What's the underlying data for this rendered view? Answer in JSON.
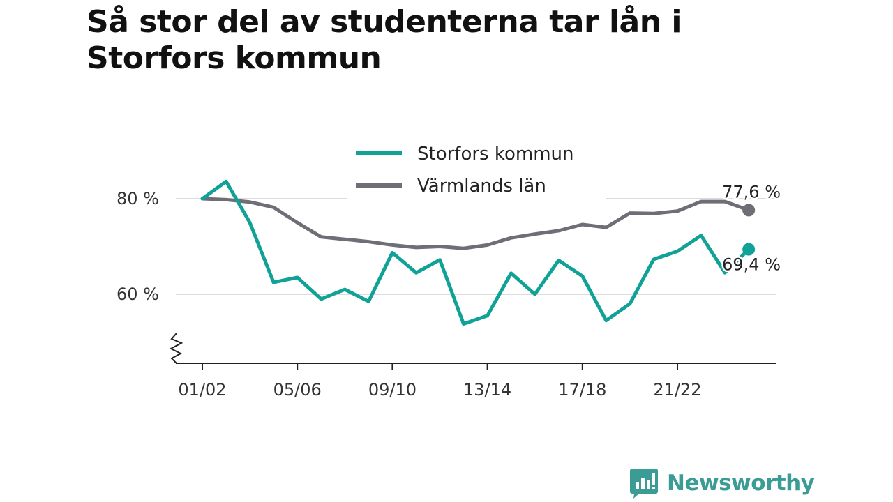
{
  "title": "Så stor del av studenterna tar lån i Storfors kommun",
  "brand": {
    "name": "Newsworthy",
    "icon": "newsworthy-logo-icon",
    "color": "#3a9c95"
  },
  "chart_data": {
    "type": "line",
    "title": "Så stor del av studenterna tar lån i Storfors kommun",
    "x": [
      "01/02",
      "02/03",
      "03/04",
      "04/05",
      "05/06",
      "06/07",
      "07/08",
      "08/09",
      "09/10",
      "10/11",
      "11/12",
      "12/13",
      "13/14",
      "14/15",
      "15/16",
      "16/17",
      "17/18",
      "18/19",
      "19/20",
      "20/21",
      "21/22",
      "22/23",
      "23/24",
      "24/25"
    ],
    "x_tick_labels": [
      "01/02",
      "05/06",
      "09/10",
      "13/14",
      "17/18",
      "21/22"
    ],
    "y_tick_labels": [
      "60 %",
      "80 %"
    ],
    "y_ticks": [
      60,
      80
    ],
    "ylim": [
      46,
      90
    ],
    "y_axis_break": true,
    "grid": true,
    "legend_position": "top-center",
    "series": [
      {
        "name": "Storfors kommun",
        "color": "#10a197",
        "values": [
          80,
          83.6,
          75,
          62.5,
          63.5,
          59,
          61,
          58.5,
          68.7,
          64.5,
          67.2,
          53.8,
          55.5,
          64.4,
          60,
          67.1,
          63.8,
          54.5,
          58,
          67.3,
          69,
          72.3,
          64.5,
          69.4
        ],
        "end_label": "69,4 %"
      },
      {
        "name": "Värmlands län",
        "color": "#6e6e76",
        "values": [
          80,
          79.8,
          79.3,
          78.2,
          75,
          72,
          71.5,
          71,
          70.3,
          69.8,
          70,
          69.6,
          70.3,
          71.8,
          72.6,
          73.3,
          74.6,
          74,
          77,
          76.9,
          77.4,
          79.4,
          79.4,
          77.6
        ],
        "end_label": "77,6 %"
      }
    ]
  }
}
